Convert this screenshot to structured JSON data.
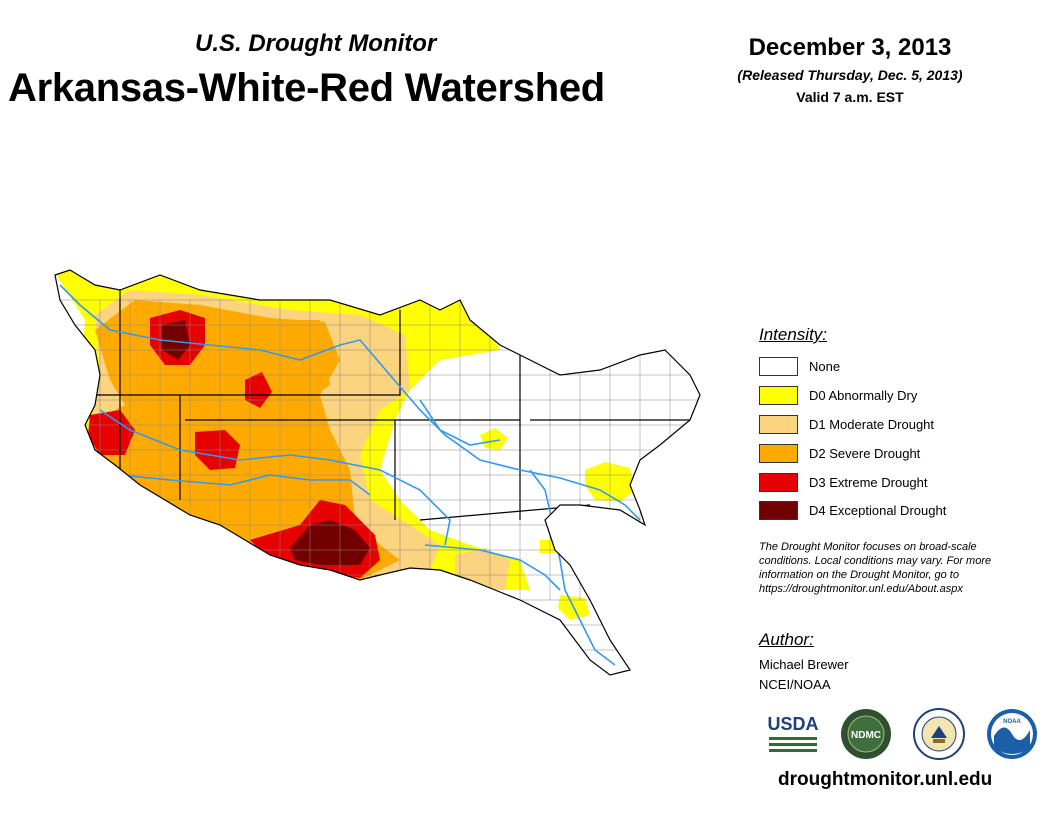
{
  "header": {
    "subtitle": "U.S. Drought Monitor",
    "title": "Arkansas-White-Red Watershed",
    "date": "December 3, 2013",
    "released": "(Released Thursday, Dec. 5, 2013)",
    "valid": "Valid 7 a.m. EST"
  },
  "legend": {
    "title": "Intensity:",
    "items": [
      {
        "label": "None",
        "color": "#ffffff"
      },
      {
        "label": "D0 Abnormally Dry",
        "color": "#ffff00"
      },
      {
        "label": "D1 Moderate Drought",
        "color": "#fcd37f"
      },
      {
        "label": "D2 Severe Drought",
        "color": "#ffaa00"
      },
      {
        "label": "D3 Extreme Drought",
        "color": "#e60000"
      },
      {
        "label": "D4 Exceptional Drought",
        "color": "#730000"
      }
    ]
  },
  "note": "The Drought Monitor focuses on broad-scale conditions. Local conditions may vary. For more information on the Drought Monitor, go to https://droughtmonitor.unl.edu/About.aspx",
  "author": {
    "title": "Author:",
    "name": "Michael Brewer",
    "org": "NCEI/NOAA"
  },
  "logos": {
    "usda": "USDA",
    "ndmc": "NDMC",
    "noaa": "NOAA"
  },
  "footer": {
    "url": "droughtmonitor.unl.edu"
  },
  "colors": {
    "river": "#3399ee",
    "boundary": "#000000",
    "county": "#888888"
  }
}
